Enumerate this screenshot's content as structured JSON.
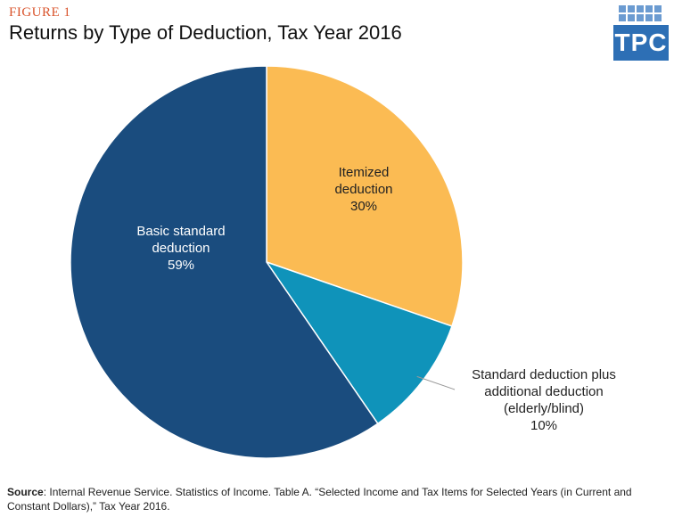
{
  "figure_label": "FIGURE 1",
  "logo_text": "TPC",
  "source": {
    "label": "Source",
    "text": ": Internal Revenue Service. Statistics of Income. Table A. “Selected Income and Tax Items for Selected Years (in Current and Constant Dollars),” Tax Year 2016."
  },
  "chart_data": {
    "type": "pie",
    "title": "Returns by Type of Deduction, Tax Year 2016",
    "slices": [
      {
        "label_lines": [
          "Itemized",
          "deduction"
        ],
        "value": 30,
        "value_label": "30%",
        "color": "#fbbb53"
      },
      {
        "label_lines": [
          "Standard deduction plus",
          "additional deduction",
          "(elderly/blind)"
        ],
        "value": 10,
        "value_label": "10%",
        "color": "#0f93ba"
      },
      {
        "label_lines": [
          "Basic standard",
          "deduction"
        ],
        "value": 59,
        "value_label": "59%",
        "color": "#1a4c7e"
      }
    ]
  }
}
